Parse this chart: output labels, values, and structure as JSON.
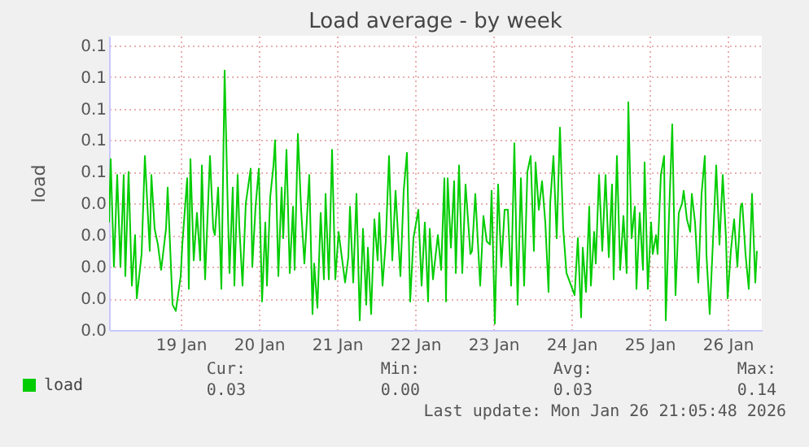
{
  "chart_data": {
    "type": "line",
    "title": "Load average - by week",
    "ylabel": "load",
    "x": [
      "2026-01-18T14:00",
      "2026-01-18T14:30",
      "2026-01-18T15:30",
      "2026-01-18T16:30",
      "2026-01-18T17:30",
      "2026-01-18T18:30",
      "2026-01-18T19:00",
      "2026-01-18T20:00",
      "2026-01-18T21:00",
      "2026-01-18T22:00",
      "2026-01-18T22:30",
      "2026-01-19T00:00",
      "2026-01-19T01:00",
      "2026-01-19T02:30",
      "2026-01-19T03:00",
      "2026-01-19T04:00",
      "2026-01-19T05:00",
      "2026-01-19T06:00",
      "2026-01-19T07:30",
      "2026-01-19T08:00",
      "2026-01-19T09:30",
      "2026-01-19T10:30",
      "2026-01-19T12:00",
      "2026-01-19T12:30",
      "2026-01-19T14:00",
      "2026-01-19T14:30",
      "2026-01-19T15:00",
      "2026-01-19T16:00",
      "2026-01-19T17:00",
      "2026-01-19T18:00",
      "2026-01-19T18:30",
      "2026-01-19T19:30",
      "2026-01-19T21:00",
      "2026-01-19T22:00",
      "2026-01-19T22:30",
      "2026-01-19T23:30",
      "2026-01-20T00:00",
      "2026-01-20T00:30",
      "2026-01-20T01:30",
      "2026-01-20T02:30",
      "2026-01-20T03:00",
      "2026-01-20T04:00",
      "2026-01-20T04:30",
      "2026-01-20T05:30",
      "2026-01-20T06:00",
      "2026-01-20T07:00",
      "2026-01-20T08:00",
      "2026-01-20T09:30",
      "2026-01-20T10:00",
      "2026-01-20T11:00",
      "2026-01-20T12:00",
      "2026-01-20T13:00",
      "2026-01-20T14:00",
      "2026-01-20T14:30",
      "2026-01-20T15:30",
      "2026-01-20T16:30",
      "2026-01-20T17:00",
      "2026-01-20T18:00",
      "2026-01-20T19:00",
      "2026-01-20T19:30",
      "2026-01-20T20:30",
      "2026-01-20T21:30",
      "2026-01-20T22:30",
      "2026-01-20T23:00",
      "2026-01-21T00:00",
      "2026-01-21T01:00",
      "2026-01-21T02:00",
      "2026-01-21T02:30",
      "2026-01-21T03:30",
      "2026-01-21T04:30",
      "2026-01-21T05:00",
      "2026-01-21T06:00",
      "2026-01-21T07:00",
      "2026-01-21T08:00",
      "2026-01-21T08:30",
      "2026-01-21T09:30",
      "2026-01-21T10:30",
      "2026-01-21T11:30",
      "2026-01-21T12:30",
      "2026-01-21T14:30",
      "2026-01-21T15:30",
      "2026-01-21T16:00",
      "2026-01-21T17:00",
      "2026-01-21T18:00",
      "2026-01-21T19:00",
      "2026-01-21T20:00",
      "2026-01-21T21:00",
      "2026-01-21T21:30",
      "2026-01-21T22:30",
      "2026-01-21T23:30",
      "2026-01-22T00:30",
      "2026-01-22T01:00",
      "2026-01-22T02:00",
      "2026-01-22T03:00",
      "2026-01-22T04:00",
      "2026-01-22T05:00",
      "2026-01-22T06:00",
      "2026-01-22T07:30",
      "2026-01-22T08:30",
      "2026-01-22T09:30",
      "2026-01-22T10:30",
      "2026-01-22T11:30",
      "2026-01-22T13:00",
      "2026-01-22T14:00",
      "2026-01-22T15:00",
      "2026-01-22T16:00",
      "2026-01-22T16:30",
      "2026-01-22T17:30",
      "2026-01-22T19:00",
      "2026-01-22T20:00",
      "2026-01-22T21:00",
      "2026-01-22T21:30",
      "2026-01-22T22:00",
      "2026-01-22T23:00",
      "2026-01-23T00:00",
      "2026-01-23T00:30",
      "2026-01-23T01:30",
      "2026-01-23T02:30",
      "2026-01-23T03:30",
      "2026-01-23T05:00",
      "2026-01-23T05:30",
      "2026-01-23T06:30",
      "2026-01-23T08:00",
      "2026-01-23T09:00",
      "2026-01-23T10:00",
      "2026-01-23T11:00",
      "2026-01-23T11:30",
      "2026-01-23T12:30",
      "2026-01-23T13:30",
      "2026-01-23T14:30",
      "2026-01-23T15:30",
      "2026-01-23T16:30",
      "2026-01-23T17:30",
      "2026-01-23T18:30",
      "2026-01-23T19:30",
      "2026-01-23T20:30",
      "2026-01-23T21:30",
      "2026-01-23T22:30",
      "2026-01-23T23:30",
      "2026-01-24T00:30",
      "2026-01-24T01:00",
      "2026-01-24T02:00",
      "2026-01-24T03:00",
      "2026-01-24T04:00",
      "2026-01-24T05:00",
      "2026-01-24T05:30",
      "2026-01-24T06:30",
      "2026-01-24T07:30",
      "2026-01-24T08:30",
      "2026-01-24T09:30",
      "2026-01-24T10:30",
      "2026-01-24T13:00",
      "2026-01-24T14:00",
      "2026-01-24T15:00",
      "2026-01-24T15:30",
      "2026-01-24T16:30",
      "2026-01-24T17:30",
      "2026-01-24T18:00",
      "2026-01-24T19:00",
      "2026-01-24T19:30",
      "2026-01-24T20:30",
      "2026-01-24T21:30",
      "2026-01-24T22:30",
      "2026-01-24T23:30",
      "2026-01-25T00:30",
      "2026-01-25T01:00",
      "2026-01-25T02:00",
      "2026-01-25T03:00",
      "2026-01-25T04:00",
      "2026-01-25T05:00",
      "2026-01-25T05:30",
      "2026-01-25T06:30",
      "2026-01-25T07:30",
      "2026-01-25T08:00",
      "2026-01-25T09:00",
      "2026-01-25T10:00",
      "2026-01-25T10:30",
      "2026-01-25T11:30",
      "2026-01-25T12:30",
      "2026-01-25T13:00",
      "2026-01-25T14:00",
      "2026-01-25T14:30",
      "2026-01-25T15:30",
      "2026-01-25T16:30",
      "2026-01-25T17:00",
      "2026-01-25T18:00",
      "2026-01-25T19:00",
      "2026-01-25T20:00",
      "2026-01-25T21:00",
      "2026-01-25T22:00",
      "2026-01-25T22:30",
      "2026-01-25T23:30",
      "2026-01-26T00:30",
      "2026-01-26T01:00",
      "2026-01-26T02:00",
      "2026-01-26T03:00",
      "2026-01-26T04:00",
      "2026-01-26T05:00",
      "2026-01-26T05:30",
      "2026-01-26T06:30",
      "2026-01-26T07:30",
      "2026-01-26T08:30",
      "2026-01-26T09:30",
      "2026-01-26T10:30",
      "2026-01-26T11:30",
      "2026-01-26T12:00",
      "2026-01-26T13:00",
      "2026-01-26T14:00",
      "2026-01-26T15:00",
      "2026-01-26T16:00",
      "2026-01-26T16:30",
      "2026-01-26T17:30",
      "2026-01-26T18:30",
      "2026-01-26T19:30",
      "2026-01-26T20:30",
      "2026-01-26T21:00"
    ],
    "series": [
      {
        "name": "load",
        "color": "#00cc00",
        "values": [
          0.034,
          0.054,
          0.02,
          0.049,
          0.02,
          0.049,
          0.017,
          0.05,
          0.014,
          0.03,
          0.01,
          0.024,
          0.055,
          0.025,
          0.049,
          0.032,
          0.027,
          0.019,
          0.032,
          0.045,
          0.008,
          0.006,
          0.017,
          0.027,
          0.048,
          0.013,
          0.054,
          0.022,
          0.037,
          0.022,
          0.052,
          0.016,
          0.055,
          0.032,
          0.03,
          0.045,
          0.03,
          0.013,
          0.082,
          0.037,
          0.018,
          0.045,
          0.014,
          0.049,
          0.033,
          0.014,
          0.04,
          0.051,
          0.02,
          0.039,
          0.051,
          0.009,
          0.034,
          0.014,
          0.042,
          0.052,
          0.06,
          0.017,
          0.045,
          0.029,
          0.057,
          0.018,
          0.039,
          0.019,
          0.062,
          0.038,
          0.021,
          0.03,
          0.049,
          0.005,
          0.021,
          0.007,
          0.037,
          0.016,
          0.043,
          0.016,
          0.057,
          0.016,
          0.031,
          0.015,
          0.023,
          0.039,
          0.015,
          0.043,
          0.003,
          0.032,
          0.008,
          0.026,
          0.005,
          0.035,
          0.022,
          0.037,
          0.014,
          0.028,
          0.055,
          0.022,
          0.044,
          0.017,
          0.044,
          0.056,
          0.009,
          0.029,
          0.038,
          0.014,
          0.034,
          0.009,
          0.032,
          0.016,
          0.03,
          0.019,
          0.048,
          0.009,
          0.048,
          0.026,
          0.047,
          0.018,
          0.052,
          0.018,
          0.046,
          0.024,
          0.025,
          0.043,
          0.014,
          0.036,
          0.028,
          0.027,
          0.044,
          0.002,
          0.046,
          0.02,
          0.038,
          0.038,
          0.014,
          0.059,
          0.008,
          0.048,
          0.014,
          0.05,
          0.055,
          0.025,
          0.053,
          0.038,
          0.047,
          0.034,
          0.012,
          0.04,
          0.055,
          0.029,
          0.064,
          0.032,
          0.018,
          0.011,
          0.029,
          0.004,
          0.026,
          0.012,
          0.039,
          0.014,
          0.031,
          0.021,
          0.049,
          0.025,
          0.049,
          0.023,
          0.046,
          0.016,
          0.055,
          0.019,
          0.036,
          0.018,
          0.072,
          0.029,
          0.039,
          0.013,
          0.037,
          0.019,
          0.053,
          0.013,
          0.034,
          0.024,
          0.03,
          0.024,
          0.049,
          0.055,
          0.003,
          0.036,
          0.065,
          0.011,
          0.037,
          0.04,
          0.044,
          0.035,
          0.031,
          0.043,
          0.034,
          0.015,
          0.043,
          0.055,
          0.024,
          0.005,
          0.028,
          0.052,
          0.027,
          0.049,
          0.029,
          0.01,
          0.025,
          0.035,
          0.02,
          0.039,
          0.04,
          0.024,
          0.013,
          0.043,
          0.015,
          0.025
        ]
      }
    ],
    "xlim": [
      "2026-01-18T14:00",
      "2026-01-26T22:30"
    ],
    "xticks": [
      {
        "value": "2026-01-19T12:00",
        "label": "19 Jan"
      },
      {
        "value": "2026-01-20T12:00",
        "label": "20 Jan"
      },
      {
        "value": "2026-01-21T12:00",
        "label": "21 Jan"
      },
      {
        "value": "2026-01-22T12:00",
        "label": "22 Jan"
      },
      {
        "value": "2026-01-23T12:00",
        "label": "23 Jan"
      },
      {
        "value": "2026-01-24T12:00",
        "label": "24 Jan"
      },
      {
        "value": "2026-01-25T12:00",
        "label": "25 Jan"
      },
      {
        "value": "2026-01-26T12:00",
        "label": "26 Jan"
      }
    ],
    "ylim": [
      0,
      0.093
    ],
    "yticks": [
      {
        "value": 0,
        "label": "0.0"
      },
      {
        "value": 0.01,
        "label": "0.0"
      },
      {
        "value": 0.02,
        "label": "0.0"
      },
      {
        "value": 0.03,
        "label": "0.0"
      },
      {
        "value": 0.04,
        "label": "0.0"
      },
      {
        "value": 0.05,
        "label": "0.1"
      },
      {
        "value": 0.06,
        "label": "0.1"
      },
      {
        "value": 0.07,
        "label": "0.1"
      },
      {
        "value": 0.08,
        "label": "0.1"
      },
      {
        "value": 0.09,
        "label": "0.1"
      }
    ],
    "grid": true,
    "legend": "bottom",
    "annotations": [
      "Cur:",
      "0.03",
      "Min:",
      "0.00",
      "Avg:",
      "0.03",
      "Max:",
      "0.14",
      "Last update: Mon Jan 26 21:05:48 2026"
    ]
  }
}
